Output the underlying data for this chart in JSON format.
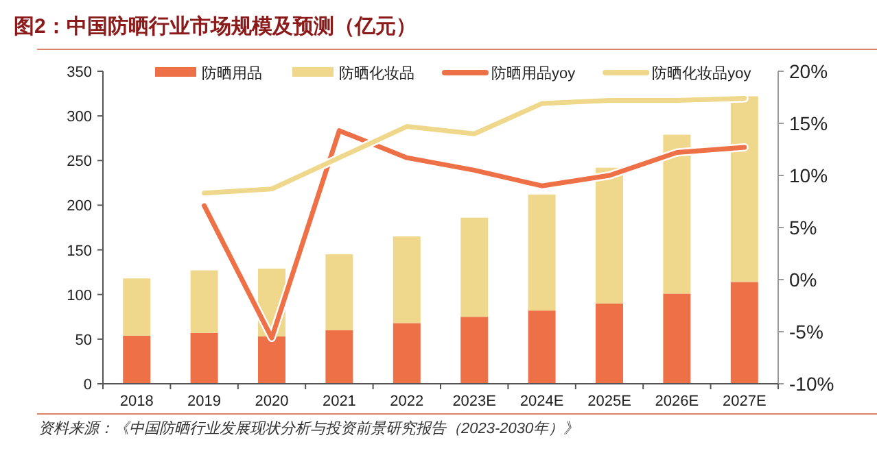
{
  "chart_data": {
    "type": "bar",
    "title": "图2：中国防晒行业市场规模及预测（亿元）",
    "stacked": true,
    "legend": "top",
    "categories": [
      "2018",
      "2019",
      "2020",
      "2021",
      "2022",
      "2023E",
      "2024E",
      "2025E",
      "2026E",
      "2027E"
    ],
    "series": [
      {
        "name": "防晒用品",
        "type": "bar",
        "color": "#ed7047",
        "values": [
          54,
          57,
          53,
          60,
          68,
          75,
          82,
          90,
          101,
          114
        ]
      },
      {
        "name": "防晒化妆品",
        "type": "bar",
        "color": "#efd88b",
        "values": [
          64,
          70,
          76,
          85,
          97,
          111,
          130,
          152,
          178,
          208
        ]
      },
      {
        "name": "防晒用品yoy",
        "type": "line",
        "axis": "y2",
        "color": "#ed7047",
        "values": [
          null,
          7.1,
          -5.6,
          14.3,
          11.7,
          10.5,
          9.0,
          10.0,
          12.2,
          12.7
        ]
      },
      {
        "name": "防晒化妆品yoy",
        "type": "line",
        "axis": "y2",
        "color": "#efd88b",
        "values": [
          null,
          8.3,
          8.7,
          11.7,
          14.7,
          14.0,
          16.9,
          17.2,
          17.2,
          17.4
        ]
      }
    ],
    "ylim": [
      0,
      350
    ],
    "yticks": [
      0,
      50,
      100,
      150,
      200,
      250,
      300,
      350
    ],
    "y2lim": [
      -10,
      20
    ],
    "y2ticks": [
      {
        "value": -10,
        "label": "-10%"
      },
      {
        "value": -5,
        "label": "-5%"
      },
      {
        "value": 0,
        "label": "0%"
      },
      {
        "value": 5,
        "label": "5%"
      },
      {
        "value": 10,
        "label": "10%"
      },
      {
        "value": 15,
        "label": "15%"
      },
      {
        "value": 20,
        "label": "20%"
      }
    ],
    "annotations": [
      "资料来源：《中国防晒行业发展现状分析与投资前景研究报告（2023-2030年）》"
    ]
  }
}
